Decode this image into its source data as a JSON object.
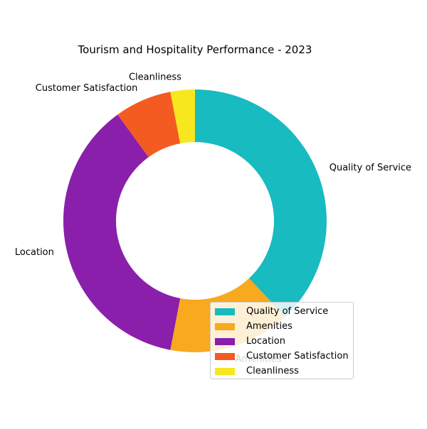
{
  "chart_data": {
    "type": "pie",
    "style": "donut",
    "title": "Tourism and Hospitality Performance - 2023",
    "categories": [
      "Quality of Service",
      "Amenities",
      "Location",
      "Customer Satisfaction",
      "Cleanliness"
    ],
    "values": [
      38,
      15,
      37,
      7,
      3
    ],
    "colors": [
      "#17BBC0",
      "#F8A91D",
      "#8A1FAC",
      "#F35B20",
      "#F7E71F"
    ],
    "start": "top, clockwise",
    "legend": "lower-right"
  }
}
